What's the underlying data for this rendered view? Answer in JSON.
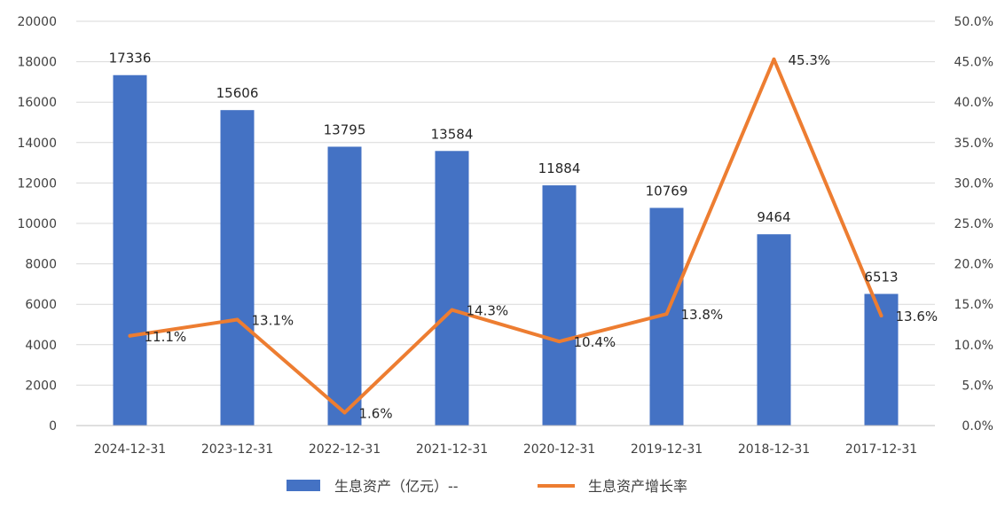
{
  "chart_data": {
    "type": "bar",
    "categories": [
      "2024-12-31",
      "2023-12-31",
      "2022-12-31",
      "2021-12-31",
      "2020-12-31",
      "2019-12-31",
      "2018-12-31",
      "2017-12-31"
    ],
    "series": [
      {
        "name": "生息资产（亿元）--",
        "type": "bar",
        "axis": "left",
        "color": "#4472C4",
        "values": [
          17336,
          15606,
          13795,
          13584,
          11884,
          10769,
          9464,
          6513
        ],
        "labels": [
          "17336",
          "15606",
          "13795",
          "13584",
          "11884",
          "10769",
          "9464",
          "6513"
        ]
      },
      {
        "name": "生息资产增长率",
        "type": "line",
        "axis": "right",
        "color": "#ED7D31",
        "values": [
          11.1,
          13.1,
          1.6,
          14.3,
          10.4,
          13.8,
          45.3,
          13.6
        ],
        "labels": [
          "11.1%",
          "13.1%",
          "1.6%",
          "14.3%",
          "10.4%",
          "13.8%",
          "45.3%",
          "13.6%"
        ]
      }
    ],
    "y_left": {
      "min": 0,
      "max": 20000,
      "ticks": [
        0,
        2000,
        4000,
        6000,
        8000,
        10000,
        12000,
        14000,
        16000,
        18000,
        20000
      ],
      "tick_labels": [
        "0",
        "2000",
        "4000",
        "6000",
        "8000",
        "10000",
        "12000",
        "14000",
        "16000",
        "18000",
        "20000"
      ]
    },
    "y_right": {
      "min": 0,
      "max": 50,
      "ticks": [
        0,
        5,
        10,
        15,
        20,
        25,
        30,
        35,
        40,
        45,
        50
      ],
      "tick_labels": [
        "0.0%",
        "5.0%",
        "10.0%",
        "15.0%",
        "20.0%",
        "25.0%",
        "30.0%",
        "35.0%",
        "40.0%",
        "45.0%",
        "50.0%"
      ]
    },
    "grid": true,
    "legend": "bottom",
    "title": "",
    "xlabel": "",
    "ylabel": ""
  }
}
